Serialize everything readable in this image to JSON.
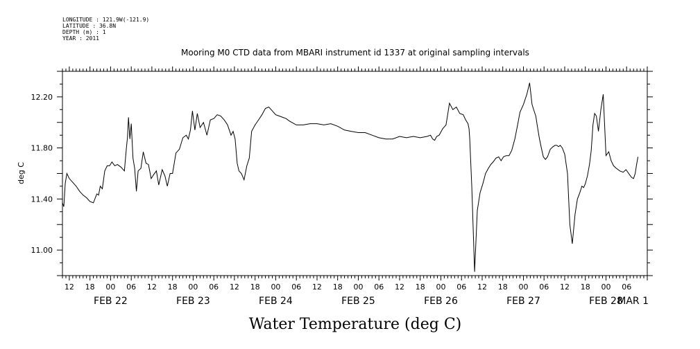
{
  "chart_data": {
    "type": "line",
    "header": {
      "longitude": "LONGITUDE : 121.9W(-121.9)",
      "latitude": "LATITUDE : 36.8N",
      "depth": "DEPTH (m) : 1",
      "year": "YEAR : 2011"
    },
    "title": "Mooring M0 CTD data from MBARI instrument id 1337 at original sampling intervals",
    "xlabel": "Water Temperature (deg C)",
    "ylabel": "deg C",
    "xlim": [
      0,
      170
    ],
    "ylim": [
      10.8,
      12.4
    ],
    "ytick_labels": [
      {
        "v": 11.0,
        "label": "11.00"
      },
      {
        "v": 11.4,
        "label": "11.40"
      },
      {
        "v": 11.8,
        "label": "11.80"
      },
      {
        "v": 12.2,
        "label": "12.20"
      }
    ],
    "hour_labels": [
      {
        "t": 2,
        "label": "12"
      },
      {
        "t": 8,
        "label": "18"
      },
      {
        "t": 14,
        "label": "00"
      },
      {
        "t": 20,
        "label": "06"
      },
      {
        "t": 26,
        "label": "12"
      },
      {
        "t": 32,
        "label": "18"
      },
      {
        "t": 38,
        "label": "00"
      },
      {
        "t": 44,
        "label": "06"
      },
      {
        "t": 50,
        "label": "12"
      },
      {
        "t": 56,
        "label": "18"
      },
      {
        "t": 62,
        "label": "00"
      },
      {
        "t": 68,
        "label": "06"
      },
      {
        "t": 74,
        "label": "12"
      },
      {
        "t": 80,
        "label": "18"
      },
      {
        "t": 86,
        "label": "00"
      },
      {
        "t": 92,
        "label": "06"
      },
      {
        "t": 98,
        "label": "12"
      },
      {
        "t": 104,
        "label": "18"
      },
      {
        "t": 110,
        "label": "00"
      },
      {
        "t": 116,
        "label": "06"
      },
      {
        "t": 122,
        "label": "12"
      },
      {
        "t": 128,
        "label": "18"
      },
      {
        "t": 134,
        "label": "00"
      },
      {
        "t": 140,
        "label": "06"
      },
      {
        "t": 146,
        "label": "12"
      },
      {
        "t": 152,
        "label": "18"
      },
      {
        "t": 158,
        "label": "00"
      },
      {
        "t": 164,
        "label": "06"
      }
    ],
    "date_labels": [
      {
        "t": 14,
        "label": "FEB 22"
      },
      {
        "t": 38,
        "label": "FEB 23"
      },
      {
        "t": 62,
        "label": "FEB 24"
      },
      {
        "t": 86,
        "label": "FEB 25"
      },
      {
        "t": 110,
        "label": "FEB 26"
      },
      {
        "t": 134,
        "label": "FEB 27"
      },
      {
        "t": 158,
        "label": "FEB 28"
      },
      {
        "t": 170,
        "label": "MAR  1"
      }
    ],
    "series": [
      {
        "x": [
          0,
          0.4,
          0.8,
          1.3,
          2,
          3,
          4,
          5,
          6,
          7,
          8,
          9,
          10,
          10.5,
          11,
          11.6,
          12.3,
          13,
          13.7,
          14.4,
          15.2,
          16,
          17,
          18,
          18.6,
          18.9,
          19.2,
          19.6,
          20,
          20.5,
          21,
          21.5,
          22,
          22.8,
          23.5,
          24.3,
          25,
          25.8,
          26.5,
          27.3,
          28,
          29,
          29.8,
          30.5,
          31.3,
          32,
          33,
          34,
          35,
          36,
          36.6,
          37.2,
          37.8,
          38.5,
          39.2,
          40,
          41,
          42,
          43,
          44,
          45,
          46,
          47,
          48,
          48.5,
          49,
          49.6,
          50.2,
          50.8,
          51.3,
          52,
          52.8,
          53.6,
          54.3,
          55,
          56,
          57,
          58,
          59,
          60,
          61,
          62,
          63,
          64,
          65,
          66,
          68,
          70,
          72,
          74,
          76,
          78,
          80,
          82,
          84,
          86,
          88,
          90,
          92,
          94,
          96,
          98,
          100,
          102,
          104,
          106,
          107,
          107.6,
          108.2,
          108.8,
          109.5,
          110.5,
          111.5,
          112.5,
          113.5,
          114.5,
          115.5,
          116.5,
          117.2,
          117.9,
          118.2,
          118.4,
          119,
          119.8,
          120.6,
          121.4,
          122.2,
          123,
          123.8,
          124.5,
          125.2,
          126,
          126.8,
          127.5,
          128.2,
          129,
          129.8,
          130.6,
          131.5,
          132.3,
          133,
          134,
          135,
          135.8,
          136.5,
          137.2,
          137.6,
          138,
          138.6,
          139.2,
          139.8,
          140.4,
          141,
          141.8,
          142.6,
          143.2,
          143.7,
          144.2,
          144.7,
          145.3,
          146,
          146.8,
          147.5,
          148.2,
          149,
          149.7,
          150.4,
          151,
          151.5,
          152,
          152.6,
          153.2,
          153.7,
          154.2,
          154.7,
          155.2,
          155.8,
          156.5,
          157.2,
          158,
          158.8,
          159.5,
          160.2,
          161,
          162,
          163,
          163.8,
          164.6,
          165.4,
          166,
          166.5,
          166.9,
          167.3
        ],
        "y": [
          11.37,
          11.34,
          11.52,
          11.6,
          11.56,
          11.53,
          11.5,
          11.46,
          11.43,
          11.41,
          11.38,
          11.37,
          11.44,
          11.43,
          11.5,
          11.48,
          11.62,
          11.66,
          11.66,
          11.69,
          11.66,
          11.67,
          11.65,
          11.62,
          11.8,
          11.88,
          12.04,
          11.87,
          11.99,
          11.72,
          11.64,
          11.46,
          11.62,
          11.64,
          11.77,
          11.68,
          11.67,
          11.56,
          11.59,
          11.62,
          11.51,
          11.63,
          11.58,
          11.5,
          11.6,
          11.6,
          11.76,
          11.79,
          11.88,
          11.9,
          11.87,
          11.94,
          12.09,
          11.94,
          12.07,
          11.96,
          12.0,
          11.9,
          12.02,
          12.03,
          12.06,
          12.05,
          12.02,
          11.98,
          11.94,
          11.9,
          11.93,
          11.87,
          11.68,
          11.62,
          11.6,
          11.55,
          11.66,
          11.72,
          11.93,
          11.98,
          12.02,
          12.06,
          12.11,
          12.12,
          12.09,
          12.06,
          12.05,
          12.04,
          12.03,
          12.01,
          11.98,
          11.98,
          11.99,
          11.99,
          11.98,
          11.99,
          11.97,
          11.94,
          11.93,
          11.92,
          11.92,
          11.9,
          11.88,
          11.87,
          11.87,
          11.89,
          11.88,
          11.89,
          11.88,
          11.89,
          11.9,
          11.87,
          11.86,
          11.89,
          11.9,
          11.95,
          11.98,
          12.15,
          12.1,
          12.12,
          12.07,
          12.06,
          12.02,
          11.99,
          11.95,
          11.87,
          11.49,
          10.83,
          11.31,
          11.45,
          11.52,
          11.6,
          11.64,
          11.67,
          11.69,
          11.72,
          11.73,
          11.7,
          11.73,
          11.74,
          11.74,
          11.78,
          11.87,
          11.98,
          12.08,
          12.14,
          12.22,
          12.31,
          12.14,
          12.08,
          12.05,
          11.98,
          11.88,
          11.8,
          11.73,
          11.71,
          11.73,
          11.79,
          11.81,
          11.82,
          11.82,
          11.81,
          11.82,
          11.8,
          11.75,
          11.6,
          11.2,
          11.05,
          11.28,
          11.4,
          11.45,
          11.5,
          11.49,
          11.52,
          11.58,
          11.67,
          11.78,
          11.98,
          12.07,
          12.05,
          11.93,
          12.1,
          12.22,
          11.74,
          11.77,
          11.7,
          11.66,
          11.64,
          11.62,
          11.61,
          11.63,
          11.6,
          11.57,
          11.56,
          11.6,
          11.67,
          11.73
        ]
      }
    ]
  }
}
